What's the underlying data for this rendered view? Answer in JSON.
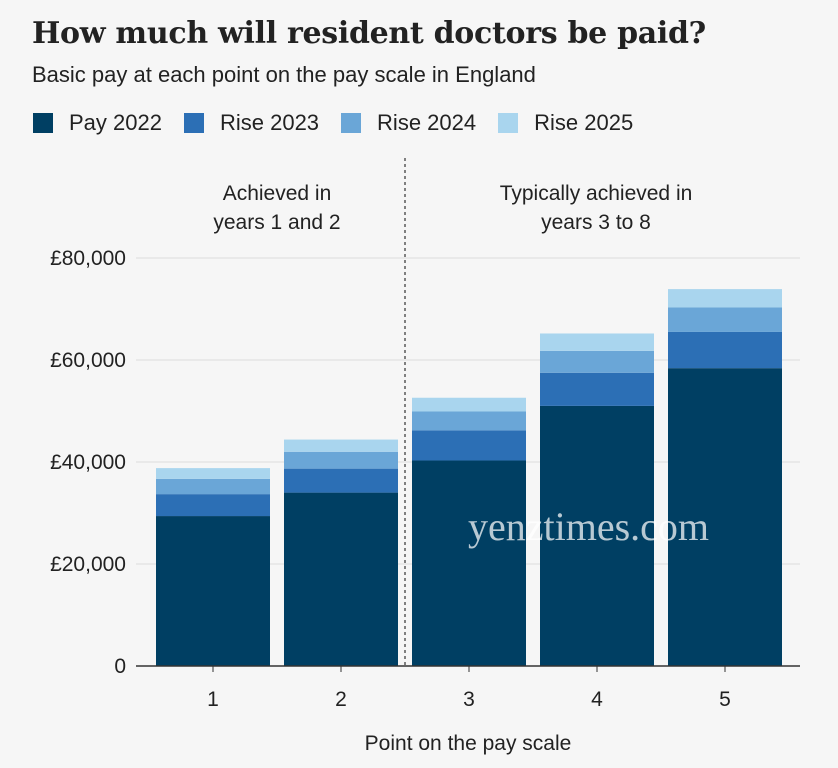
{
  "chart_data": {
    "type": "bar",
    "stacked": true,
    "title": "How much will resident doctors be paid?",
    "subtitle": "Basic pay at each point on the pay scale in England",
    "xlabel": "Point on the pay scale",
    "ylabel": "",
    "categories": [
      "1",
      "2",
      "3",
      "4",
      "5"
    ],
    "series": [
      {
        "name": "Pay 2022",
        "color": "#003f63",
        "values": [
          29400,
          34000,
          40300,
          51000,
          58400
        ]
      },
      {
        "name": "Rise 2023",
        "color": "#2c6fb5",
        "values": [
          4300,
          4700,
          5900,
          6500,
          7100
        ]
      },
      {
        "name": "Rise 2024",
        "color": "#6aa6d7",
        "values": [
          3000,
          3300,
          3700,
          4300,
          4800
        ]
      },
      {
        "name": "Rise 2025",
        "color": "#a9d5ee",
        "values": [
          2100,
          2400,
          2700,
          3400,
          3600
        ]
      }
    ],
    "yticks": [
      0,
      20000,
      40000,
      60000,
      80000
    ],
    "ytick_labels": [
      "0",
      "£20,000",
      "£40,000",
      "£60,000",
      "£80,000"
    ],
    "ylim": [
      0,
      80000
    ],
    "grid": true,
    "legend_position": "top-left",
    "annotations": [
      {
        "lines": [
          "Achieved in",
          "years 1 and 2"
        ]
      },
      {
        "lines": [
          "Typically achieved in",
          "years 3 to 8"
        ]
      }
    ],
    "divider_after_category": "2"
  },
  "watermark": "yenztimes.com"
}
